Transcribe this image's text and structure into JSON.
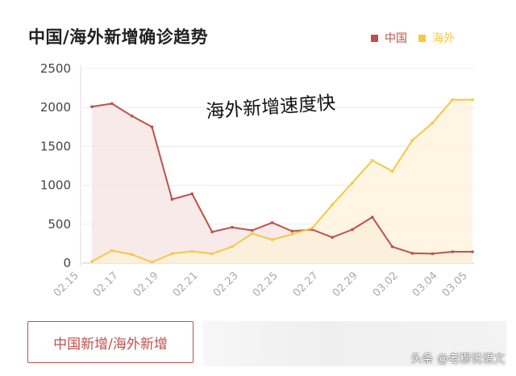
{
  "header": {
    "title": "中国/海外新增确诊趋势"
  },
  "legend": [
    {
      "label": "中国",
      "color": "#c0504a"
    },
    {
      "label": "海外",
      "color": "#f5c842"
    }
  ],
  "annotation": "海外新增速度快",
  "button_label": "中国新增/海外新增",
  "watermark": "头条 @老穆说语文",
  "chart_data": {
    "type": "area",
    "x": [
      "02.15",
      "02.16",
      "02.17",
      "02.18",
      "02.19",
      "02.20",
      "02.21",
      "02.22",
      "02.23",
      "02.24",
      "02.25",
      "02.26",
      "02.27",
      "02.28",
      "02.29",
      "03.01",
      "03.02",
      "03.03",
      "03.04",
      "03.05"
    ],
    "x_tick_labels": [
      "02.15",
      "02.17",
      "02.19",
      "02.21",
      "02.23",
      "02.25",
      "02.27",
      "02.29",
      "03.02",
      "03.04",
      "03.05"
    ],
    "series": [
      {
        "name": "中国",
        "color": "#c0504a",
        "fill": "#f6e3e1",
        "values": [
          2010,
          2050,
          1890,
          1750,
          820,
          890,
          400,
          460,
          420,
          520,
          410,
          430,
          330,
          430,
          590,
          210,
          125,
          120,
          145,
          145
        ]
      },
      {
        "name": "海外",
        "color": "#f5c842",
        "fill": "#fdf1d8",
        "values": [
          20,
          160,
          110,
          10,
          120,
          150,
          120,
          210,
          380,
          300,
          370,
          450,
          750,
          1030,
          1320,
          1180,
          1580,
          1800,
          2100,
          2100
        ]
      }
    ],
    "ylim": [
      0,
      2500
    ],
    "y_ticks": [
      0,
      500,
      1000,
      1500,
      2000,
      2500
    ],
    "grid": true,
    "legend_position": "top-right"
  }
}
